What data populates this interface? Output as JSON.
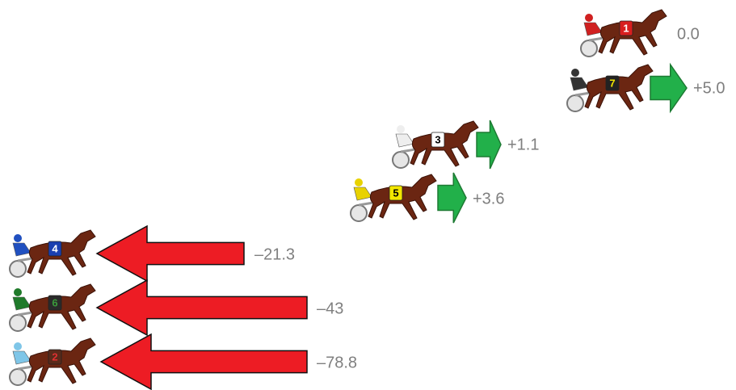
{
  "rows": [
    {
      "number": "1",
      "change": "0.0"
    },
    {
      "number": "7",
      "change": "+5.0"
    },
    {
      "number": "3",
      "change": "+1.1"
    },
    {
      "number": "5",
      "change": "+3.6"
    },
    {
      "number": "4",
      "change": "–21.3"
    },
    {
      "number": "6",
      "change": "–43"
    },
    {
      "number": "2",
      "change": "–78.8"
    }
  ]
}
